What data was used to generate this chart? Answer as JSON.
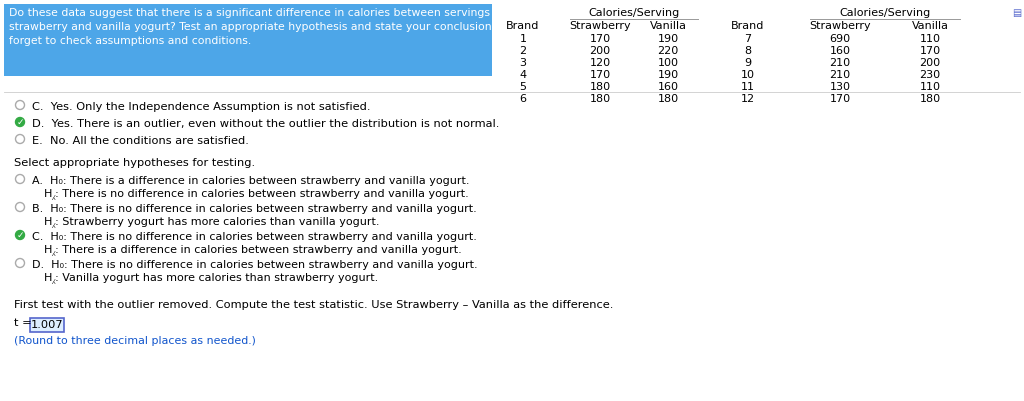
{
  "question_text_line1": "Do these data suggest that there is a significant difference in calories between servings of",
  "question_text_line2": "strawberry and vanilla yogurt? Test an appropriate hypothesis and state your conclusion. Don't",
  "question_text_line3": "forget to check assumptions and conditions.",
  "question_bg": "#4da6e8",
  "question_text_color": "#ffffff",
  "table": {
    "brands_left": [
      1,
      2,
      3,
      4,
      5,
      6
    ],
    "strawberry_left": [
      170,
      200,
      120,
      170,
      180,
      180
    ],
    "vanilla_left": [
      190,
      220,
      100,
      190,
      160,
      180
    ],
    "brands_right": [
      7,
      8,
      9,
      10,
      11,
      12
    ],
    "strawberry_right": [
      690,
      160,
      210,
      210,
      130,
      170
    ],
    "vanilla_right": [
      110,
      170,
      200,
      230,
      110,
      180
    ]
  },
  "options_C_text": "Yes. Only the Independence Assumption is not satisfied.",
  "options_D_text": "Yes. There is an outlier, even without the outlier the distribution is not normal.",
  "options_E_text": "No. All the conditions are satisfied.",
  "select_hyp_text": "Select appropriate hypotheses for testing.",
  "hyp_A_H0": "There is a difference in calories between strawberry and vanilla yogurt.",
  "hyp_A_HA": "There is no difference in calories between strawberry and vanilla yogurt.",
  "hyp_B_H0": "There is no difference in calories between strawberry and vanilla yogurt.",
  "hyp_B_HA": "Strawberry yogurt has more calories than vanilla yogurt.",
  "hyp_C_H0": "There is no difference in calories between strawberry and vanilla yogurt.",
  "hyp_C_HA": "There is a difference in calories between strawberry and vanilla yogurt.",
  "hyp_D_H0": "There is no difference in calories between strawberry and vanilla yogurt.",
  "hyp_D_HA": "Vanilla yogurt has more calories than strawberry yogurt.",
  "first_test_text": "First test with the outlier removed. Compute the test statistic. Use Strawberry – Vanilla as the difference.",
  "t_value": "1.007",
  "round_note": "(Round to three decimal places as needed.)",
  "bg_color": "#ffffff",
  "text_color": "#000000",
  "blue_text_color": "#1155cc",
  "separator_color": "#cccccc",
  "radio_unsel_color": "#aaaaaa",
  "radio_sel_color": "#33aa44",
  "table_line_color": "#999999"
}
